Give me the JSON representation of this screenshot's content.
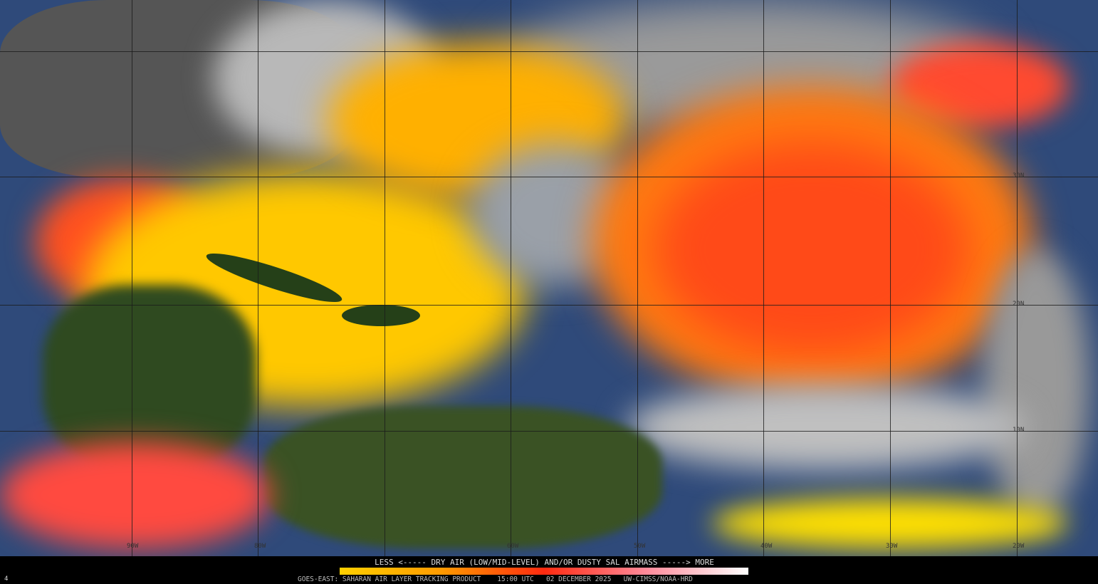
{
  "map": {
    "latitude_labels": [
      "30N",
      "20N",
      "10N"
    ],
    "longitude_labels": [
      "90W",
      "80W",
      "60W",
      "50W",
      "40W",
      "30W",
      "20W"
    ]
  },
  "legend": {
    "title": "LESS <----- DRY AIR (LOW/MID-LEVEL) AND/OR DUSTY SAL AIRMASS -----> MORE",
    "colors": [
      "#ffd000",
      "#ff9a00",
      "#ff2a10",
      "#ff8a9a",
      "#ffffff"
    ]
  },
  "footer": {
    "frame": "4",
    "product": "GOES-EAST: SAHARAN AIR LAYER TRACKING PRODUCT",
    "time": "15:00 UTC",
    "date": "02 DECEMBER 2025",
    "credit": "UW-CIMSS/NOAA-HRD"
  }
}
